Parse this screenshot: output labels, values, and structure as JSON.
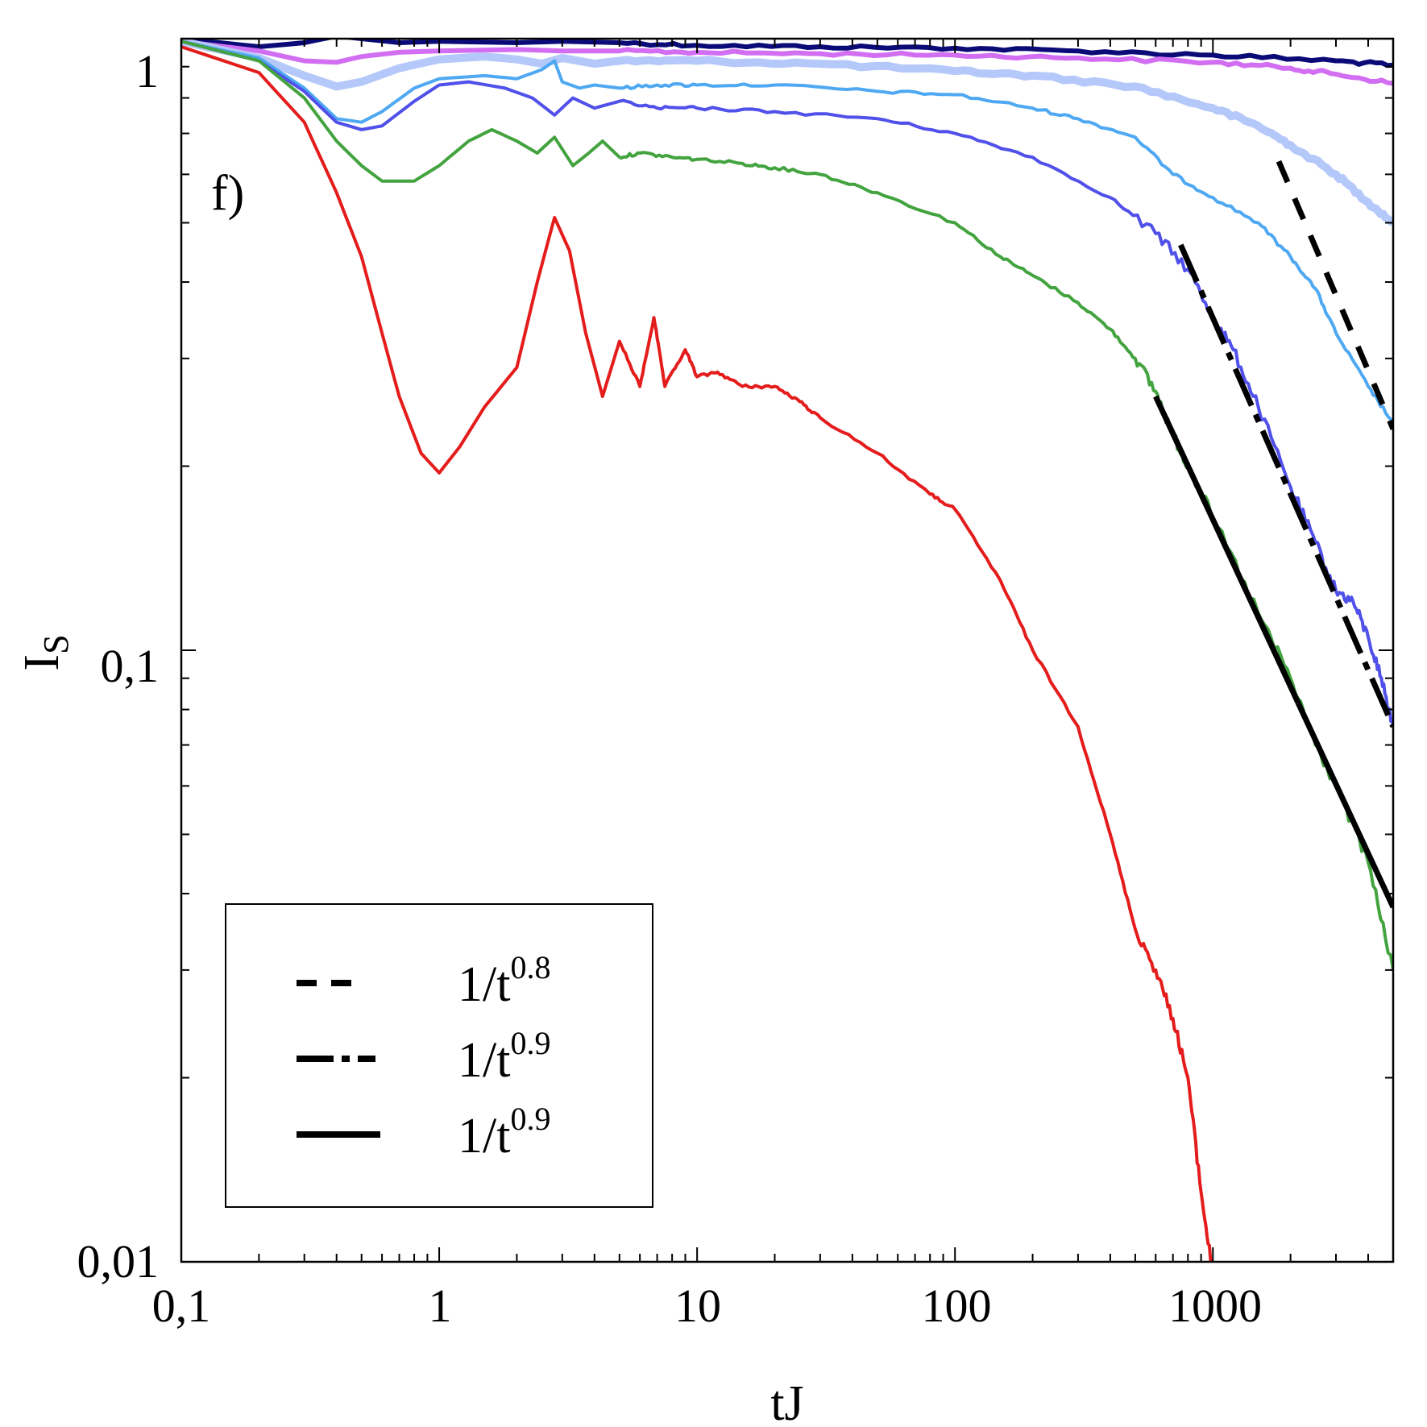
{
  "chart_data": {
    "type": "line",
    "panel_label": "f)",
    "xlabel": "tJ",
    "ylabel_main": "I",
    "ylabel_sub": "S",
    "x_scale": "log",
    "y_scale": "log",
    "xlim": [
      0.1,
      5000
    ],
    "ylim": [
      0.01,
      1
    ],
    "x_ticks": [
      {
        "value": 0.1,
        "label": "0,1"
      },
      {
        "value": 1,
        "label": "1"
      },
      {
        "value": 10,
        "label": "10"
      },
      {
        "value": 100,
        "label": "100"
      },
      {
        "value": 1000,
        "label": "1000"
      }
    ],
    "y_ticks": [
      {
        "value": 0.01,
        "label": "0,01"
      },
      {
        "value": 0.1,
        "label": "0,1"
      },
      {
        "value": 1,
        "label": "1"
      }
    ],
    "grid": false,
    "legend_position": "bottom-left",
    "legend": [
      {
        "style": "dashed",
        "prefix": "1/t",
        "exponent": "0.8"
      },
      {
        "style": "dashdot",
        "prefix": "1/t",
        "exponent": "0.9"
      },
      {
        "style": "solid",
        "prefix": "1/t",
        "exponent": "0.9"
      }
    ],
    "series": [
      {
        "color": "#0b0b78",
        "width": 6,
        "points": [
          [
            0.1,
            1.0
          ],
          [
            0.2,
            0.97
          ],
          [
            0.3,
            0.985
          ],
          [
            0.4,
            1.01
          ],
          [
            0.5,
            1.0
          ],
          [
            0.7,
            0.985
          ],
          [
            1,
            0.99
          ],
          [
            2,
            0.985
          ],
          [
            3,
            0.99
          ],
          [
            5,
            0.985
          ],
          [
            10,
            0.975
          ],
          [
            30,
            0.97
          ],
          [
            100,
            0.965
          ],
          [
            300,
            0.955
          ],
          [
            1000,
            0.94
          ],
          [
            3000,
            0.92
          ],
          [
            5000,
            0.905
          ]
        ]
      },
      {
        "color": "#d26ef2",
        "width": 6,
        "points": [
          [
            0.1,
            0.99
          ],
          [
            0.2,
            0.955
          ],
          [
            0.3,
            0.92
          ],
          [
            0.4,
            0.915
          ],
          [
            0.5,
            0.935
          ],
          [
            0.7,
            0.95
          ],
          [
            1,
            0.955
          ],
          [
            2,
            0.96
          ],
          [
            3,
            0.955
          ],
          [
            5,
            0.955
          ],
          [
            10,
            0.95
          ],
          [
            30,
            0.945
          ],
          [
            100,
            0.94
          ],
          [
            300,
            0.93
          ],
          [
            1000,
            0.915
          ],
          [
            2000,
            0.895
          ],
          [
            3000,
            0.875
          ],
          [
            5000,
            0.845
          ]
        ]
      },
      {
        "color": "#b4c8fa",
        "width": 10,
        "points": [
          [
            0.1,
            0.99
          ],
          [
            0.2,
            0.93
          ],
          [
            0.3,
            0.87
          ],
          [
            0.4,
            0.835
          ],
          [
            0.5,
            0.85
          ],
          [
            0.7,
            0.895
          ],
          [
            1,
            0.925
          ],
          [
            1.5,
            0.935
          ],
          [
            2,
            0.925
          ],
          [
            2.5,
            0.91
          ],
          [
            3,
            0.93
          ],
          [
            4,
            0.91
          ],
          [
            5,
            0.92
          ],
          [
            10,
            0.92
          ],
          [
            30,
            0.91
          ],
          [
            100,
            0.885
          ],
          [
            200,
            0.87
          ],
          [
            500,
            0.835
          ],
          [
            1000,
            0.77
          ],
          [
            1500,
            0.72
          ],
          [
            2000,
            0.67
          ],
          [
            3000,
            0.6
          ],
          [
            4000,
            0.54
          ],
          [
            5000,
            0.5
          ]
        ]
      },
      {
        "color": "#4ea8f2",
        "width": 4,
        "points": [
          [
            0.1,
            0.99
          ],
          [
            0.2,
            0.93
          ],
          [
            0.3,
            0.83
          ],
          [
            0.4,
            0.74
          ],
          [
            0.5,
            0.73
          ],
          [
            0.6,
            0.76
          ],
          [
            0.8,
            0.83
          ],
          [
            1,
            0.86
          ],
          [
            1.5,
            0.87
          ],
          [
            2,
            0.86
          ],
          [
            2.5,
            0.89
          ],
          [
            2.8,
            0.92
          ],
          [
            3,
            0.85
          ],
          [
            3.5,
            0.83
          ],
          [
            4,
            0.84
          ],
          [
            5,
            0.83
          ],
          [
            7,
            0.84
          ],
          [
            10,
            0.84
          ],
          [
            20,
            0.84
          ],
          [
            50,
            0.82
          ],
          [
            100,
            0.81
          ],
          [
            200,
            0.77
          ],
          [
            300,
            0.74
          ],
          [
            500,
            0.69
          ],
          [
            700,
            0.6
          ],
          [
            1000,
            0.55
          ],
          [
            1500,
            0.5
          ],
          [
            2000,
            0.44
          ],
          [
            2500,
            0.39
          ],
          [
            3000,
            0.33
          ],
          [
            4000,
            0.27
          ],
          [
            5000,
            0.235
          ]
        ]
      },
      {
        "color": "#5050ea",
        "width": 4,
        "points": [
          [
            0.1,
            0.99
          ],
          [
            0.2,
            0.92
          ],
          [
            0.3,
            0.82
          ],
          [
            0.4,
            0.73
          ],
          [
            0.5,
            0.71
          ],
          [
            0.6,
            0.72
          ],
          [
            0.8,
            0.79
          ],
          [
            1,
            0.84
          ],
          [
            1.3,
            0.85
          ],
          [
            1.8,
            0.83
          ],
          [
            2.3,
            0.8
          ],
          [
            2.8,
            0.75
          ],
          [
            3.3,
            0.8
          ],
          [
            4,
            0.77
          ],
          [
            5,
            0.79
          ],
          [
            7,
            0.77
          ],
          [
            10,
            0.77
          ],
          [
            20,
            0.76
          ],
          [
            50,
            0.74
          ],
          [
            100,
            0.7
          ],
          [
            200,
            0.64
          ],
          [
            400,
            0.55
          ],
          [
            600,
            0.48
          ],
          [
            800,
            0.42
          ],
          [
            1000,
            0.35
          ],
          [
            1200,
            0.31
          ],
          [
            1500,
            0.25
          ],
          [
            2000,
            0.185
          ],
          [
            2500,
            0.15
          ],
          [
            3000,
            0.125
          ],
          [
            3500,
            0.12
          ],
          [
            4000,
            0.105
          ],
          [
            4500,
            0.09
          ],
          [
            5000,
            0.075
          ]
        ]
      },
      {
        "color": "#43a33f",
        "width": 4,
        "points": [
          [
            0.1,
            0.99
          ],
          [
            0.2,
            0.92
          ],
          [
            0.3,
            0.8
          ],
          [
            0.4,
            0.68
          ],
          [
            0.5,
            0.62
          ],
          [
            0.6,
            0.585
          ],
          [
            0.8,
            0.585
          ],
          [
            1,
            0.62
          ],
          [
            1.3,
            0.68
          ],
          [
            1.6,
            0.71
          ],
          [
            2,
            0.68
          ],
          [
            2.4,
            0.65
          ],
          [
            2.8,
            0.69
          ],
          [
            3.3,
            0.62
          ],
          [
            3.8,
            0.65
          ],
          [
            4.3,
            0.68
          ],
          [
            5,
            0.64
          ],
          [
            6,
            0.65
          ],
          [
            8,
            0.64
          ],
          [
            10,
            0.635
          ],
          [
            15,
            0.625
          ],
          [
            20,
            0.615
          ],
          [
            30,
            0.6
          ],
          [
            50,
            0.56
          ],
          [
            100,
            0.5
          ],
          [
            150,
            0.44
          ],
          [
            200,
            0.41
          ],
          [
            300,
            0.37
          ],
          [
            400,
            0.335
          ],
          [
            500,
            0.3
          ],
          [
            600,
            0.265
          ],
          [
            700,
            0.225
          ],
          [
            800,
            0.2
          ],
          [
            1000,
            0.165
          ],
          [
            1500,
            0.115
          ],
          [
            2000,
            0.09
          ],
          [
            2500,
            0.07
          ],
          [
            3000,
            0.06
          ],
          [
            4000,
            0.045
          ],
          [
            5000,
            0.03
          ]
        ]
      },
      {
        "color": "#e41c1c",
        "width": 4,
        "points": [
          [
            0.1,
            0.97
          ],
          [
            0.2,
            0.88
          ],
          [
            0.3,
            0.73
          ],
          [
            0.4,
            0.56
          ],
          [
            0.5,
            0.44
          ],
          [
            0.6,
            0.33
          ],
          [
            0.7,
            0.26
          ],
          [
            0.85,
            0.21
          ],
          [
            1,
            0.195
          ],
          [
            1.2,
            0.215
          ],
          [
            1.5,
            0.25
          ],
          [
            2,
            0.29
          ],
          [
            2.4,
            0.4
          ],
          [
            2.8,
            0.51
          ],
          [
            3.2,
            0.45
          ],
          [
            3.7,
            0.33
          ],
          [
            4.3,
            0.26
          ],
          [
            5,
            0.32
          ],
          [
            6,
            0.27
          ],
          [
            6.8,
            0.35
          ],
          [
            7.5,
            0.27
          ],
          [
            9,
            0.31
          ],
          [
            10,
            0.28
          ],
          [
            12,
            0.285
          ],
          [
            15,
            0.27
          ],
          [
            20,
            0.27
          ],
          [
            25,
            0.255
          ],
          [
            30,
            0.24
          ],
          [
            50,
            0.21
          ],
          [
            80,
            0.18
          ],
          [
            100,
            0.17
          ],
          [
            150,
            0.13
          ],
          [
            200,
            0.1
          ],
          [
            300,
            0.075
          ],
          [
            400,
            0.05
          ],
          [
            500,
            0.035
          ],
          [
            600,
            0.03
          ],
          [
            700,
            0.025
          ],
          [
            800,
            0.02
          ],
          [
            900,
            0.013
          ],
          [
            1000,
            0.0095
          ]
        ]
      }
    ],
    "fit_lines": [
      {
        "style": "dashed",
        "exponent": 0.8,
        "x_start": 1800,
        "y_start": 0.63,
        "x_end": 5000,
        "y_end": 0.23
      },
      {
        "style": "dashdot",
        "exponent": 0.9,
        "x_start": 750,
        "y_start": 0.46,
        "x_end": 5000,
        "y_end": 0.075
      },
      {
        "style": "solid",
        "exponent": 0.9,
        "x_start": 600,
        "y_start": 0.26,
        "x_end": 5000,
        "y_end": 0.038
      }
    ]
  }
}
